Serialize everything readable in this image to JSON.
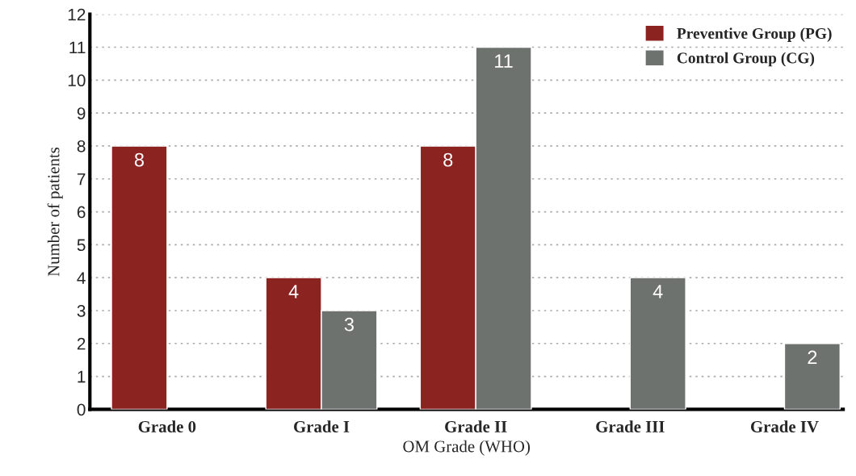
{
  "chart_data": {
    "type": "bar",
    "xlabel": "OM Grade (WHO)",
    "ylabel": "Number of patients",
    "categories": [
      "Grade 0",
      "Grade I",
      "Grade II",
      "Grade III",
      "Grade IV"
    ],
    "series": [
      {
        "name": "Preventive Group (PG)",
        "color": "#8b2420",
        "values": [
          8,
          4,
          8,
          null,
          null
        ]
      },
      {
        "name": "Control Group (CG)",
        "color": "#6e726f",
        "values": [
          null,
          3,
          11,
          4,
          2
        ]
      }
    ],
    "ylim": [
      0,
      12
    ],
    "yticks": [
      0,
      1,
      2,
      3,
      4,
      5,
      6,
      7,
      8,
      9,
      10,
      11,
      12
    ],
    "grid": "y",
    "legend": "top right",
    "data_labels": true
  }
}
